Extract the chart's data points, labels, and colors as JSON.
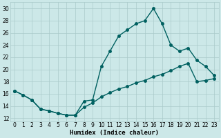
{
  "xlabel": "Humidex (Indice chaleur)",
  "background_color": "#cce8e8",
  "grid_color": "#aacaca",
  "line_color": "#006060",
  "xlim": [
    -0.5,
    23.5
  ],
  "ylim": [
    11.5,
    31.0
  ],
  "yticks": [
    12,
    14,
    16,
    18,
    20,
    22,
    24,
    26,
    28,
    30
  ],
  "xticks": [
    0,
    1,
    2,
    3,
    4,
    5,
    6,
    7,
    8,
    9,
    10,
    11,
    12,
    13,
    14,
    15,
    16,
    17,
    18,
    19,
    20,
    21,
    22,
    23
  ],
  "line1_x": [
    0,
    1,
    2,
    3,
    4,
    5,
    6,
    7,
    8,
    9,
    10,
    11,
    12,
    13,
    14,
    15,
    16,
    17,
    18,
    19,
    20,
    21,
    22,
    23
  ],
  "line1_y": [
    16.5,
    15.8,
    15.0,
    13.5,
    13.2,
    12.8,
    12.5,
    12.5,
    14.8,
    15.0,
    20.5,
    23.0,
    25.5,
    26.5,
    27.5,
    28.0,
    30.0,
    27.5,
    24.0,
    23.0,
    23.5,
    21.5,
    20.5,
    19.0
  ],
  "line2_x": [
    0,
    1,
    2,
    3,
    4,
    5,
    6,
    7,
    8,
    9,
    10,
    11,
    12,
    13,
    14,
    15,
    16,
    17,
    18,
    19,
    20,
    21,
    22,
    23
  ],
  "line2_y": [
    16.5,
    15.8,
    15.0,
    13.5,
    13.2,
    12.8,
    12.5,
    12.5,
    13.8,
    14.5,
    15.5,
    16.2,
    16.8,
    17.2,
    17.8,
    18.2,
    18.8,
    19.2,
    19.8,
    20.5,
    21.0,
    18.0,
    18.2,
    18.5
  ],
  "marker_size": 2.5,
  "linewidth": 1.0,
  "font_size_xlabel": 6.5,
  "font_size_ticks": 5.5,
  "fig_width": 3.2,
  "fig_height": 2.0,
  "dpi": 100
}
